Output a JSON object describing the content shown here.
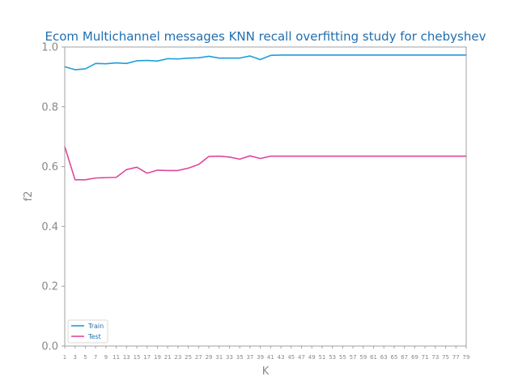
{
  "chart_data": {
    "type": "line",
    "title": "Ecom Multichannel messages KNN recall overfitting study for chebyshev",
    "xlabel": "K",
    "ylabel": "f2",
    "xlim": [
      1,
      79
    ],
    "ylim": [
      0.0,
      1.0
    ],
    "yticks": [
      "0.0",
      "0.2",
      "0.4",
      "0.6",
      "0.8",
      "1.0"
    ],
    "x": [
      1,
      3,
      5,
      7,
      9,
      11,
      13,
      15,
      17,
      19,
      21,
      23,
      25,
      27,
      29,
      31,
      33,
      35,
      37,
      39,
      41,
      43,
      45,
      47,
      49,
      51,
      53,
      55,
      57,
      59,
      61,
      63,
      65,
      67,
      69,
      71,
      73,
      75,
      77,
      79
    ],
    "legend_position": "lower-left",
    "grid": false,
    "series": [
      {
        "name": "Train",
        "color": "#1f9fd8",
        "values": [
          0.934,
          0.924,
          0.927,
          0.945,
          0.944,
          0.947,
          0.945,
          0.954,
          0.955,
          0.953,
          0.961,
          0.96,
          0.963,
          0.964,
          0.969,
          0.963,
          0.963,
          0.963,
          0.97,
          0.958,
          0.972,
          0.973,
          0.973,
          0.973,
          0.973,
          0.973,
          0.973,
          0.973,
          0.973,
          0.973,
          0.973,
          0.973,
          0.973,
          0.973,
          0.973,
          0.973,
          0.973,
          0.973,
          0.973,
          0.973
        ]
      },
      {
        "name": "Test",
        "color": "#e0479e",
        "values": [
          0.667,
          0.556,
          0.556,
          0.562,
          0.563,
          0.564,
          0.59,
          0.598,
          0.578,
          0.588,
          0.587,
          0.587,
          0.595,
          0.607,
          0.634,
          0.635,
          0.632,
          0.625,
          0.636,
          0.627,
          0.635,
          0.635,
          0.635,
          0.635,
          0.635,
          0.635,
          0.635,
          0.635,
          0.635,
          0.635,
          0.635,
          0.635,
          0.635,
          0.635,
          0.635,
          0.635,
          0.635,
          0.635,
          0.635,
          0.635
        ]
      }
    ]
  }
}
